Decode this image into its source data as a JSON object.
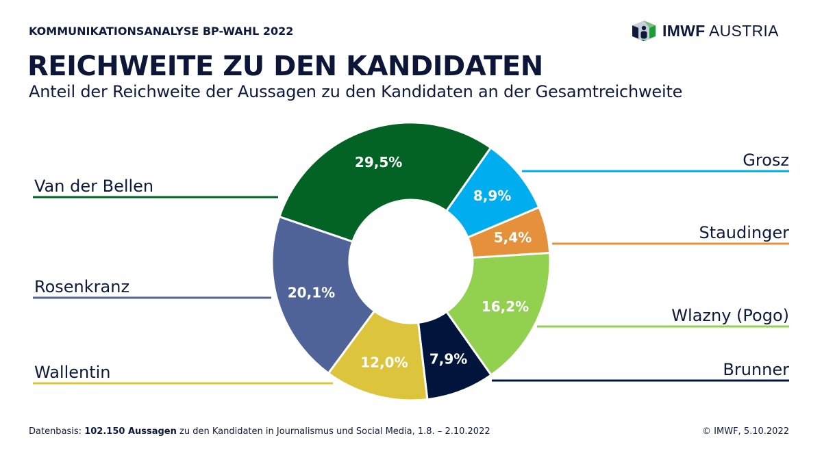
{
  "header": {
    "kicker": "KOMMUNIKATIONSANALYSE BP-WAHL 2022",
    "logo_icon": "imwf-cube-person-icon",
    "logo_bold": "IMWF",
    "logo_regular": "AUSTRIA"
  },
  "chart_data": {
    "type": "pie",
    "variant": "donut",
    "title": "REICHWEITE ZU DEN KANDIDATEN",
    "subtitle": "Anteil der Reichweite der Aussagen zu den Kandidaten an der Gesamtreichweite",
    "unit": "%",
    "start_angle_deg": 35,
    "direction": "clockwise",
    "slices": [
      {
        "name": "Grosz",
        "value": 8.9,
        "label": "8,9%",
        "color": "#00aeef",
        "side": "right"
      },
      {
        "name": "Staudinger",
        "value": 5.4,
        "label": "5,4%",
        "color": "#e5903a",
        "side": "right"
      },
      {
        "name": "Wlazny (Pogo)",
        "value": 16.2,
        "label": "16,2%",
        "color": "#92d050",
        "side": "right"
      },
      {
        "name": "Brunner",
        "value": 7.9,
        "label": "7,9%",
        "color": "#00143c",
        "side": "right"
      },
      {
        "name": "Wallentin",
        "value": 12.0,
        "label": "12,0%",
        "color": "#dcc53c",
        "side": "left"
      },
      {
        "name": "Rosenkranz",
        "value": 20.1,
        "label": "20,1%",
        "color": "#4f6399",
        "side": "left"
      },
      {
        "name": "Van der Bellen",
        "value": 29.5,
        "label": "29,5%",
        "color": "#036325",
        "side": "left"
      }
    ]
  },
  "footer": {
    "source_prefix": "Datenbasis: ",
    "source_bold": "102.150 Aussagen",
    "source_suffix": " zu den Kandidaten in Journalismus und Social Media, 1.8. – 2.10.2022",
    "copyright": "© IMWF, 5.10.2022"
  }
}
